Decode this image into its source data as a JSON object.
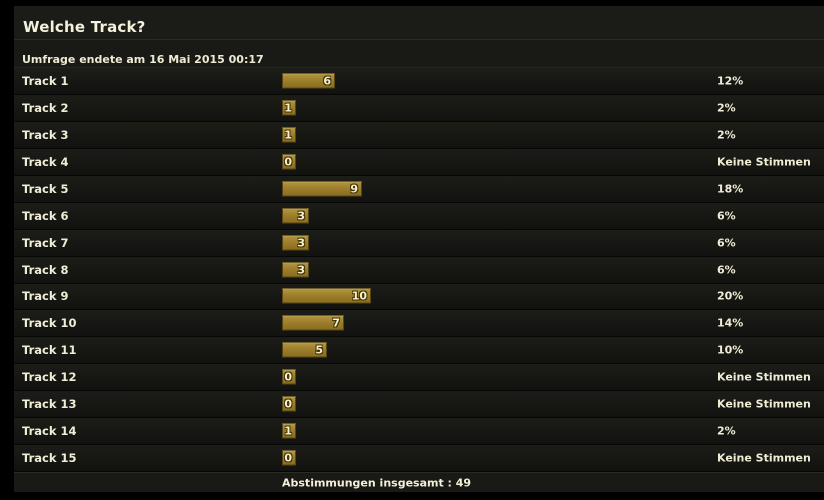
{
  "poll": {
    "title": "Welche Track?",
    "subtitle": "Umfrage endete am 16 Mai 2015 00:17",
    "footer": "Abstimmungen insgesamt : 49",
    "total_votes": 49,
    "no_votes_label": "Keine Stimmen",
    "options": [
      {
        "label": "Track 1",
        "votes": 6,
        "votes_display": "6",
        "percent": "12%"
      },
      {
        "label": "Track 2",
        "votes": 1,
        "votes_display": "1",
        "percent": "2%"
      },
      {
        "label": "Track 3",
        "votes": 1,
        "votes_display": "1",
        "percent": "2%"
      },
      {
        "label": "Track 4",
        "votes": 0,
        "votes_display": "0",
        "percent": "Keine Stimmen"
      },
      {
        "label": "Track 5",
        "votes": 9,
        "votes_display": "9",
        "percent": "18%"
      },
      {
        "label": "Track 6",
        "votes": 3,
        "votes_display": "3",
        "percent": "6%"
      },
      {
        "label": "Track 7",
        "votes": 3,
        "votes_display": "3",
        "percent": "6%"
      },
      {
        "label": "Track 8",
        "votes": 3,
        "votes_display": "3",
        "percent": "6%"
      },
      {
        "label": "Track 9",
        "votes": 10,
        "votes_display": "10",
        "percent": "20%"
      },
      {
        "label": "Track 10",
        "votes": 7,
        "votes_display": "7",
        "percent": "14%"
      },
      {
        "label": "Track 11",
        "votes": 5,
        "votes_display": "5",
        "percent": "10%"
      },
      {
        "label": "Track 12",
        "votes": 0,
        "votes_display": "0",
        "percent": "Keine Stimmen"
      },
      {
        "label": "Track 13",
        "votes": 0,
        "votes_display": "0",
        "percent": "Keine Stimmen"
      },
      {
        "label": "Track 14",
        "votes": 1,
        "votes_display": "1",
        "percent": "2%"
      },
      {
        "label": "Track 15",
        "votes": 0,
        "votes_display": "0",
        "percent": "Keine Stimmen"
      }
    ]
  },
  "colors": {
    "page_background": "#000000",
    "panel_background": "#171713",
    "bar_gold": "#9c7e2b",
    "text_cream": "#f0edd6"
  },
  "chart_data": {
    "type": "bar",
    "orientation": "horizontal",
    "title": "Welche Track?",
    "categories": [
      "Track 1",
      "Track 2",
      "Track 3",
      "Track 4",
      "Track 5",
      "Track 6",
      "Track 7",
      "Track 8",
      "Track 9",
      "Track 10",
      "Track 11",
      "Track 12",
      "Track 13",
      "Track 14",
      "Track 15"
    ],
    "values": [
      6,
      1,
      1,
      0,
      9,
      3,
      3,
      3,
      10,
      7,
      5,
      0,
      0,
      1,
      0
    ],
    "percent_labels": [
      "12%",
      "2%",
      "2%",
      "Keine Stimmen",
      "18%",
      "6%",
      "6%",
      "6%",
      "20%",
      "14%",
      "10%",
      "Keine Stimmen",
      "Keine Stimmen",
      "2%",
      "Keine Stimmen"
    ],
    "total": 49,
    "xlabel": "",
    "ylabel": "",
    "xlim": [
      0,
      10
    ],
    "grid": false,
    "legend": false
  }
}
